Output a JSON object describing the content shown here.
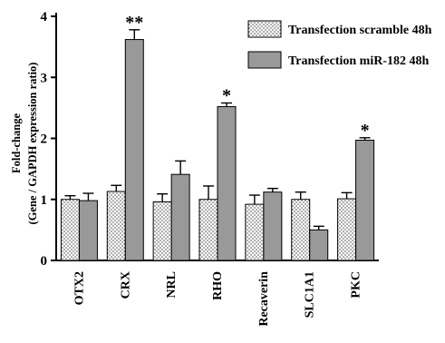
{
  "chart_data": {
    "type": "bar",
    "ylabel_line1": "Fold-change",
    "ylabel_line2": "(Gene / GAPDH expression ratio)",
    "ylim": [
      0,
      4
    ],
    "yticks": [
      "0",
      "1",
      "2",
      "3",
      "4"
    ],
    "categories": [
      "OTX2",
      "CRX",
      "NRL",
      "RHO",
      "Recaverin",
      "SLC1A1",
      "PKC"
    ],
    "series": [
      {
        "name": "Transfection scramble 48h",
        "pattern": "dots",
        "values": [
          1.0,
          1.13,
          0.96,
          1.0,
          0.92,
          1.0,
          1.01
        ],
        "errors": [
          0.06,
          0.1,
          0.13,
          0.22,
          0.15,
          0.12,
          0.1
        ]
      },
      {
        "name": "Transfection miR-182 48h",
        "color": "#999999",
        "values": [
          0.98,
          3.62,
          1.41,
          2.52,
          1.12,
          0.5,
          1.97
        ],
        "errors": [
          0.12,
          0.16,
          0.22,
          0.06,
          0.06,
          0.06,
          0.04
        ]
      }
    ],
    "significance": [
      {
        "category_index": 1,
        "label": "**"
      },
      {
        "category_index": 3,
        "label": "*"
      },
      {
        "category_index": 6,
        "label": "*"
      }
    ],
    "legend_position": "top-right",
    "grid": false
  }
}
